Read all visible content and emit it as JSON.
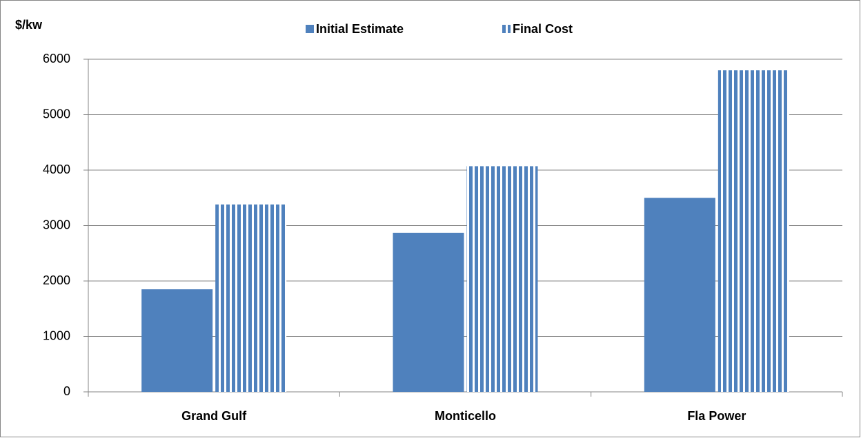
{
  "chart_data": {
    "type": "bar",
    "y_label": "$/kw",
    "categories": [
      "Grand Gulf",
      "Monticello",
      "Fla Power"
    ],
    "series": [
      {
        "name": "Initial Estimate",
        "color": "#4f81bd",
        "pattern": "solid",
        "values": [
          1850,
          2870,
          3500
        ]
      },
      {
        "name": "Final Cost",
        "color": "#4f81bd",
        "pattern": "vertical-stripes",
        "values": [
          3380,
          4070,
          5800
        ]
      }
    ],
    "ylim": [
      0,
      6000
    ],
    "yticks": [
      0,
      1000,
      2000,
      3000,
      4000,
      5000,
      6000
    ],
    "grid": true
  }
}
